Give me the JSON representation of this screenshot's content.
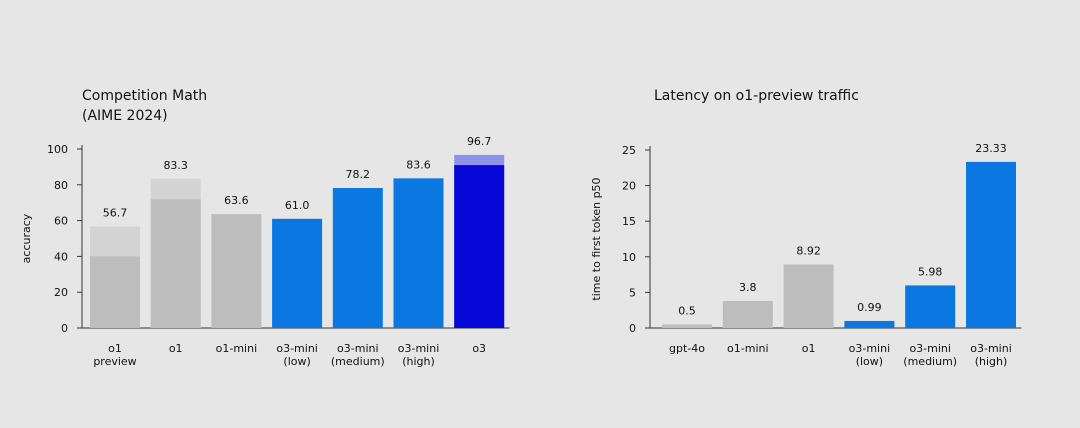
{
  "chart_data": [
    {
      "type": "bar",
      "title": [
        "Competition Math",
        "(AIME 2024)"
      ],
      "ylabel": "accuracy",
      "categories": [
        [
          "o1",
          "preview"
        ],
        [
          "o1"
        ],
        [
          "o1-mini"
        ],
        [
          "o3-mini",
          "(low)"
        ],
        [
          "o3-mini",
          "(medium)"
        ],
        [
          "o3-mini",
          "(high)"
        ],
        [
          "o3"
        ]
      ],
      "values": [
        56.7,
        83.3,
        63.6,
        61.0,
        78.2,
        83.6,
        96.7
      ],
      "value_labels": [
        "56.7",
        "83.3",
        "63.6",
        "61.0",
        "78.2",
        "83.6",
        "96.7"
      ],
      "colors": [
        "#d3d3d3",
        "#d3d3d3",
        "#bdbdbd",
        "#0a78e0",
        "#0a78e0",
        "#0a78e0",
        "#8d93ea"
      ],
      "inner_values": [
        40,
        72,
        null,
        null,
        null,
        null,
        91
      ],
      "inner_colors": [
        "#bdbdbd",
        "#bdbdbd",
        null,
        null,
        null,
        null,
        "#0606d6"
      ],
      "ylim": [
        0,
        100
      ],
      "yticks": [
        0,
        20,
        40,
        60,
        80,
        100
      ]
    },
    {
      "type": "bar",
      "title": [
        "Latency on o1-preview traffic"
      ],
      "ylabel": "time to first token p50",
      "categories": [
        [
          "gpt-4o"
        ],
        [
          "o1-mini"
        ],
        [
          "o1"
        ],
        [
          "o3-mini",
          "(low)"
        ],
        [
          "o3-mini",
          "(medium)"
        ],
        [
          "o3-mini",
          "(high)"
        ]
      ],
      "values": [
        0.5,
        3.8,
        8.92,
        0.99,
        5.98,
        23.33
      ],
      "colors": [
        "#bdbdbd",
        "#bdbdbd",
        "#bdbdbd",
        "#0a78e0",
        "#0a78e0",
        "#0a78e0"
      ],
      "ylim": [
        0,
        25
      ],
      "yticks": [
        0,
        5,
        10,
        15,
        20,
        25
      ]
    }
  ]
}
